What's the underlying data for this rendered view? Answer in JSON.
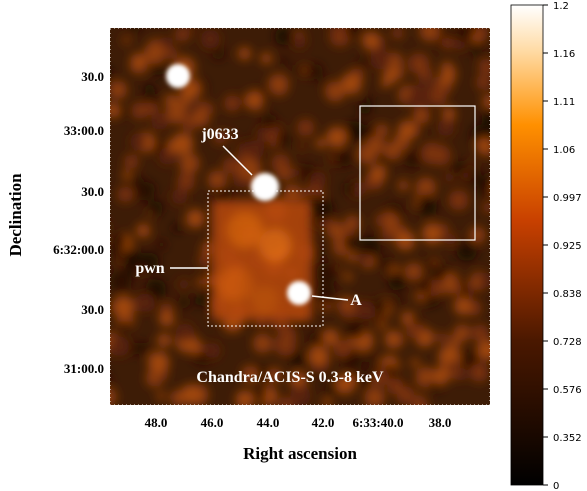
{
  "image": {
    "x_axis": {
      "label": "Right ascension",
      "ticks": [
        "48.0",
        "46.0",
        "44.0",
        "42.0",
        "6:33:40.0",
        "38.0"
      ]
    },
    "y_axis": {
      "label": "Declination",
      "ticks": [
        "30.0",
        "33:00.0",
        "30.0",
        "6:32:00.0",
        "30.0",
        "31:00.0"
      ]
    },
    "annotations": {
      "source": "j0633",
      "nebula": "pwn",
      "knot": "A",
      "instrument": "Chandra/ACIS-S 0.3-8 keV"
    }
  },
  "colorbar": {
    "ticks": [
      0,
      0.352,
      0.576,
      0.728,
      0.838,
      0.925,
      0.997,
      1.06,
      1.11,
      1.16,
      1.2
    ]
  }
}
